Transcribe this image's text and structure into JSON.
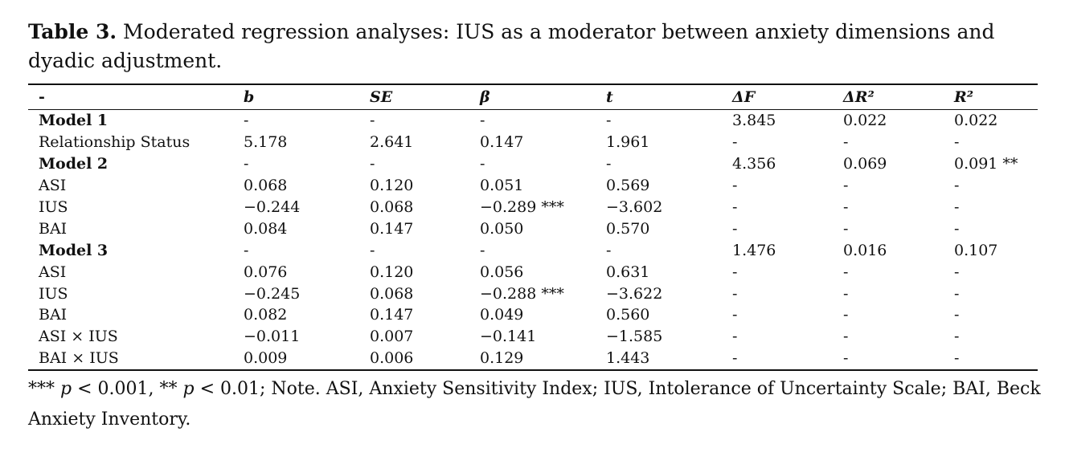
{
  "caption": {
    "label": "Table 3.",
    "text": " Moderated regression analyses: IUS as a moderator between anxiety dimensions and dyadic adjustment."
  },
  "table": {
    "headers": [
      "-",
      "b",
      "SE",
      "β",
      "t",
      "ΔF",
      "ΔR²",
      "R²"
    ],
    "rows": [
      {
        "cells": [
          "Model 1",
          "-",
          "-",
          "-",
          "-",
          "3.845",
          "0.022",
          "0.022"
        ],
        "model": true
      },
      {
        "cells": [
          "Relationship Status",
          "5.178",
          "2.641",
          "0.147",
          "1.961",
          "-",
          "-",
          "-"
        ]
      },
      {
        "cells": [
          "Model 2",
          "-",
          "-",
          "-",
          "-",
          "4.356",
          "0.069",
          "0.091 **"
        ],
        "model": true
      },
      {
        "cells": [
          "ASI",
          "0.068",
          "0.120",
          "0.051",
          "0.569",
          "-",
          "-",
          "-"
        ]
      },
      {
        "cells": [
          "IUS",
          "−0.244",
          "0.068",
          "−0.289 ***",
          "−3.602",
          "-",
          "-",
          "-"
        ]
      },
      {
        "cells": [
          "BAI",
          "0.084",
          "0.147",
          "0.050",
          "0.570",
          "-",
          "-",
          "-"
        ]
      },
      {
        "cells": [
          "Model 3",
          "-",
          "-",
          "-",
          "-",
          "1.476",
          "0.016",
          "0.107"
        ],
        "model": true
      },
      {
        "cells": [
          "ASI",
          "0.076",
          "0.120",
          "0.056",
          "0.631",
          "-",
          "-",
          "-"
        ]
      },
      {
        "cells": [
          "IUS",
          "−0.245",
          "0.068",
          "−0.288 ***",
          "−3.622",
          "-",
          "-",
          "-"
        ]
      },
      {
        "cells": [
          "BAI",
          "0.082",
          "0.147",
          "0.049",
          "0.560",
          "-",
          "-",
          "-"
        ]
      },
      {
        "cells": [
          "ASI × IUS",
          "−0.011",
          "0.007",
          "−0.141",
          "−1.585",
          "-",
          "-",
          "-"
        ]
      },
      {
        "cells": [
          "BAI × IUS",
          "0.009",
          "0.006",
          "0.129",
          "1.443",
          "-",
          "-",
          "-"
        ]
      }
    ]
  },
  "note": {
    "sig3": "***",
    "p1": "p",
    "thr1": " < 0.001, ",
    "sig2": "**",
    "p2": "p",
    "thr2": " < 0.01; Note. ASI, Anxiety Sensitivity Index; IUS, Intolerance of Uncertainty Scale; BAI, Beck Anxiety Inventory."
  }
}
